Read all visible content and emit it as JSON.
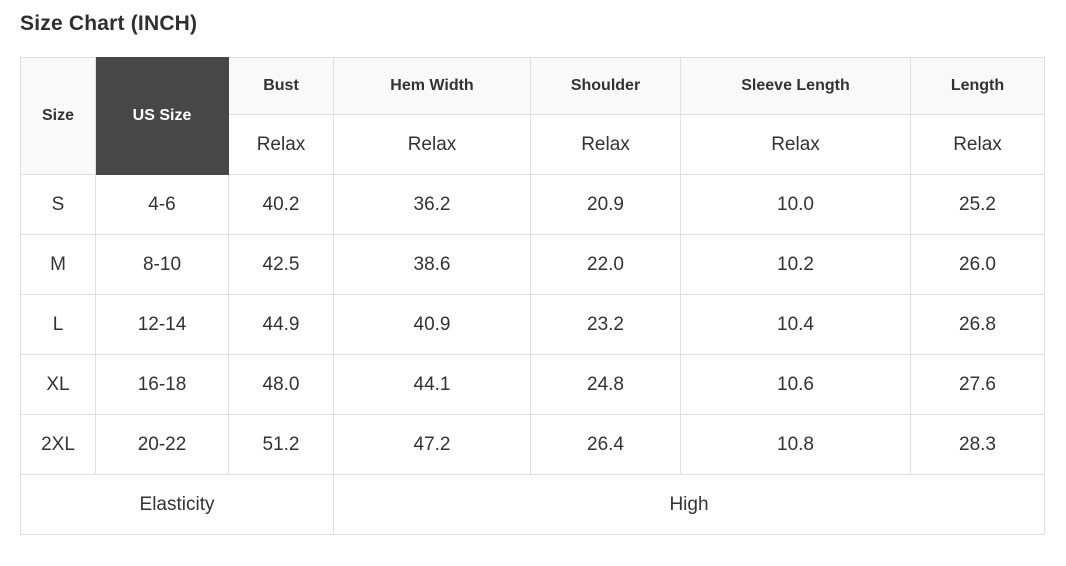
{
  "title": "Size Chart (INCH)",
  "colors": {
    "us_size_header_bg": "#474747",
    "us_size_header_text": "#ffffff",
    "header_bg": "#f9f9f9",
    "border": "#e0e0e0",
    "text": "#333333",
    "background": "#ffffff"
  },
  "chart_data": {
    "type": "table",
    "title": "Size Chart (INCH)",
    "unit": "INCH",
    "corner_header": "Size",
    "us_size_header": "US Size",
    "measure_headers": [
      "Bust",
      "Hem Width",
      "Shoulder",
      "Sleeve Length",
      "Length"
    ],
    "fit_labels": [
      "Relax",
      "Relax",
      "Relax",
      "Relax",
      "Relax"
    ],
    "rows": [
      {
        "size": "S",
        "us_size": "4-6",
        "bust": "40.2",
        "hem_width": "36.2",
        "shoulder": "20.9",
        "sleeve_length": "10.0",
        "length": "25.2"
      },
      {
        "size": "M",
        "us_size": "8-10",
        "bust": "42.5",
        "hem_width": "38.6",
        "shoulder": "22.0",
        "sleeve_length": "10.2",
        "length": "26.0"
      },
      {
        "size": "L",
        "us_size": "12-14",
        "bust": "44.9",
        "hem_width": "40.9",
        "shoulder": "23.2",
        "sleeve_length": "10.4",
        "length": "26.8"
      },
      {
        "size": "XL",
        "us_size": "16-18",
        "bust": "48.0",
        "hem_width": "44.1",
        "shoulder": "24.8",
        "sleeve_length": "10.6",
        "length": "27.6"
      },
      {
        "size": "2XL",
        "us_size": "20-22",
        "bust": "51.2",
        "hem_width": "47.2",
        "shoulder": "26.4",
        "sleeve_length": "10.8",
        "length": "28.3"
      }
    ],
    "footer": {
      "label": "Elasticity",
      "value": "High"
    }
  }
}
